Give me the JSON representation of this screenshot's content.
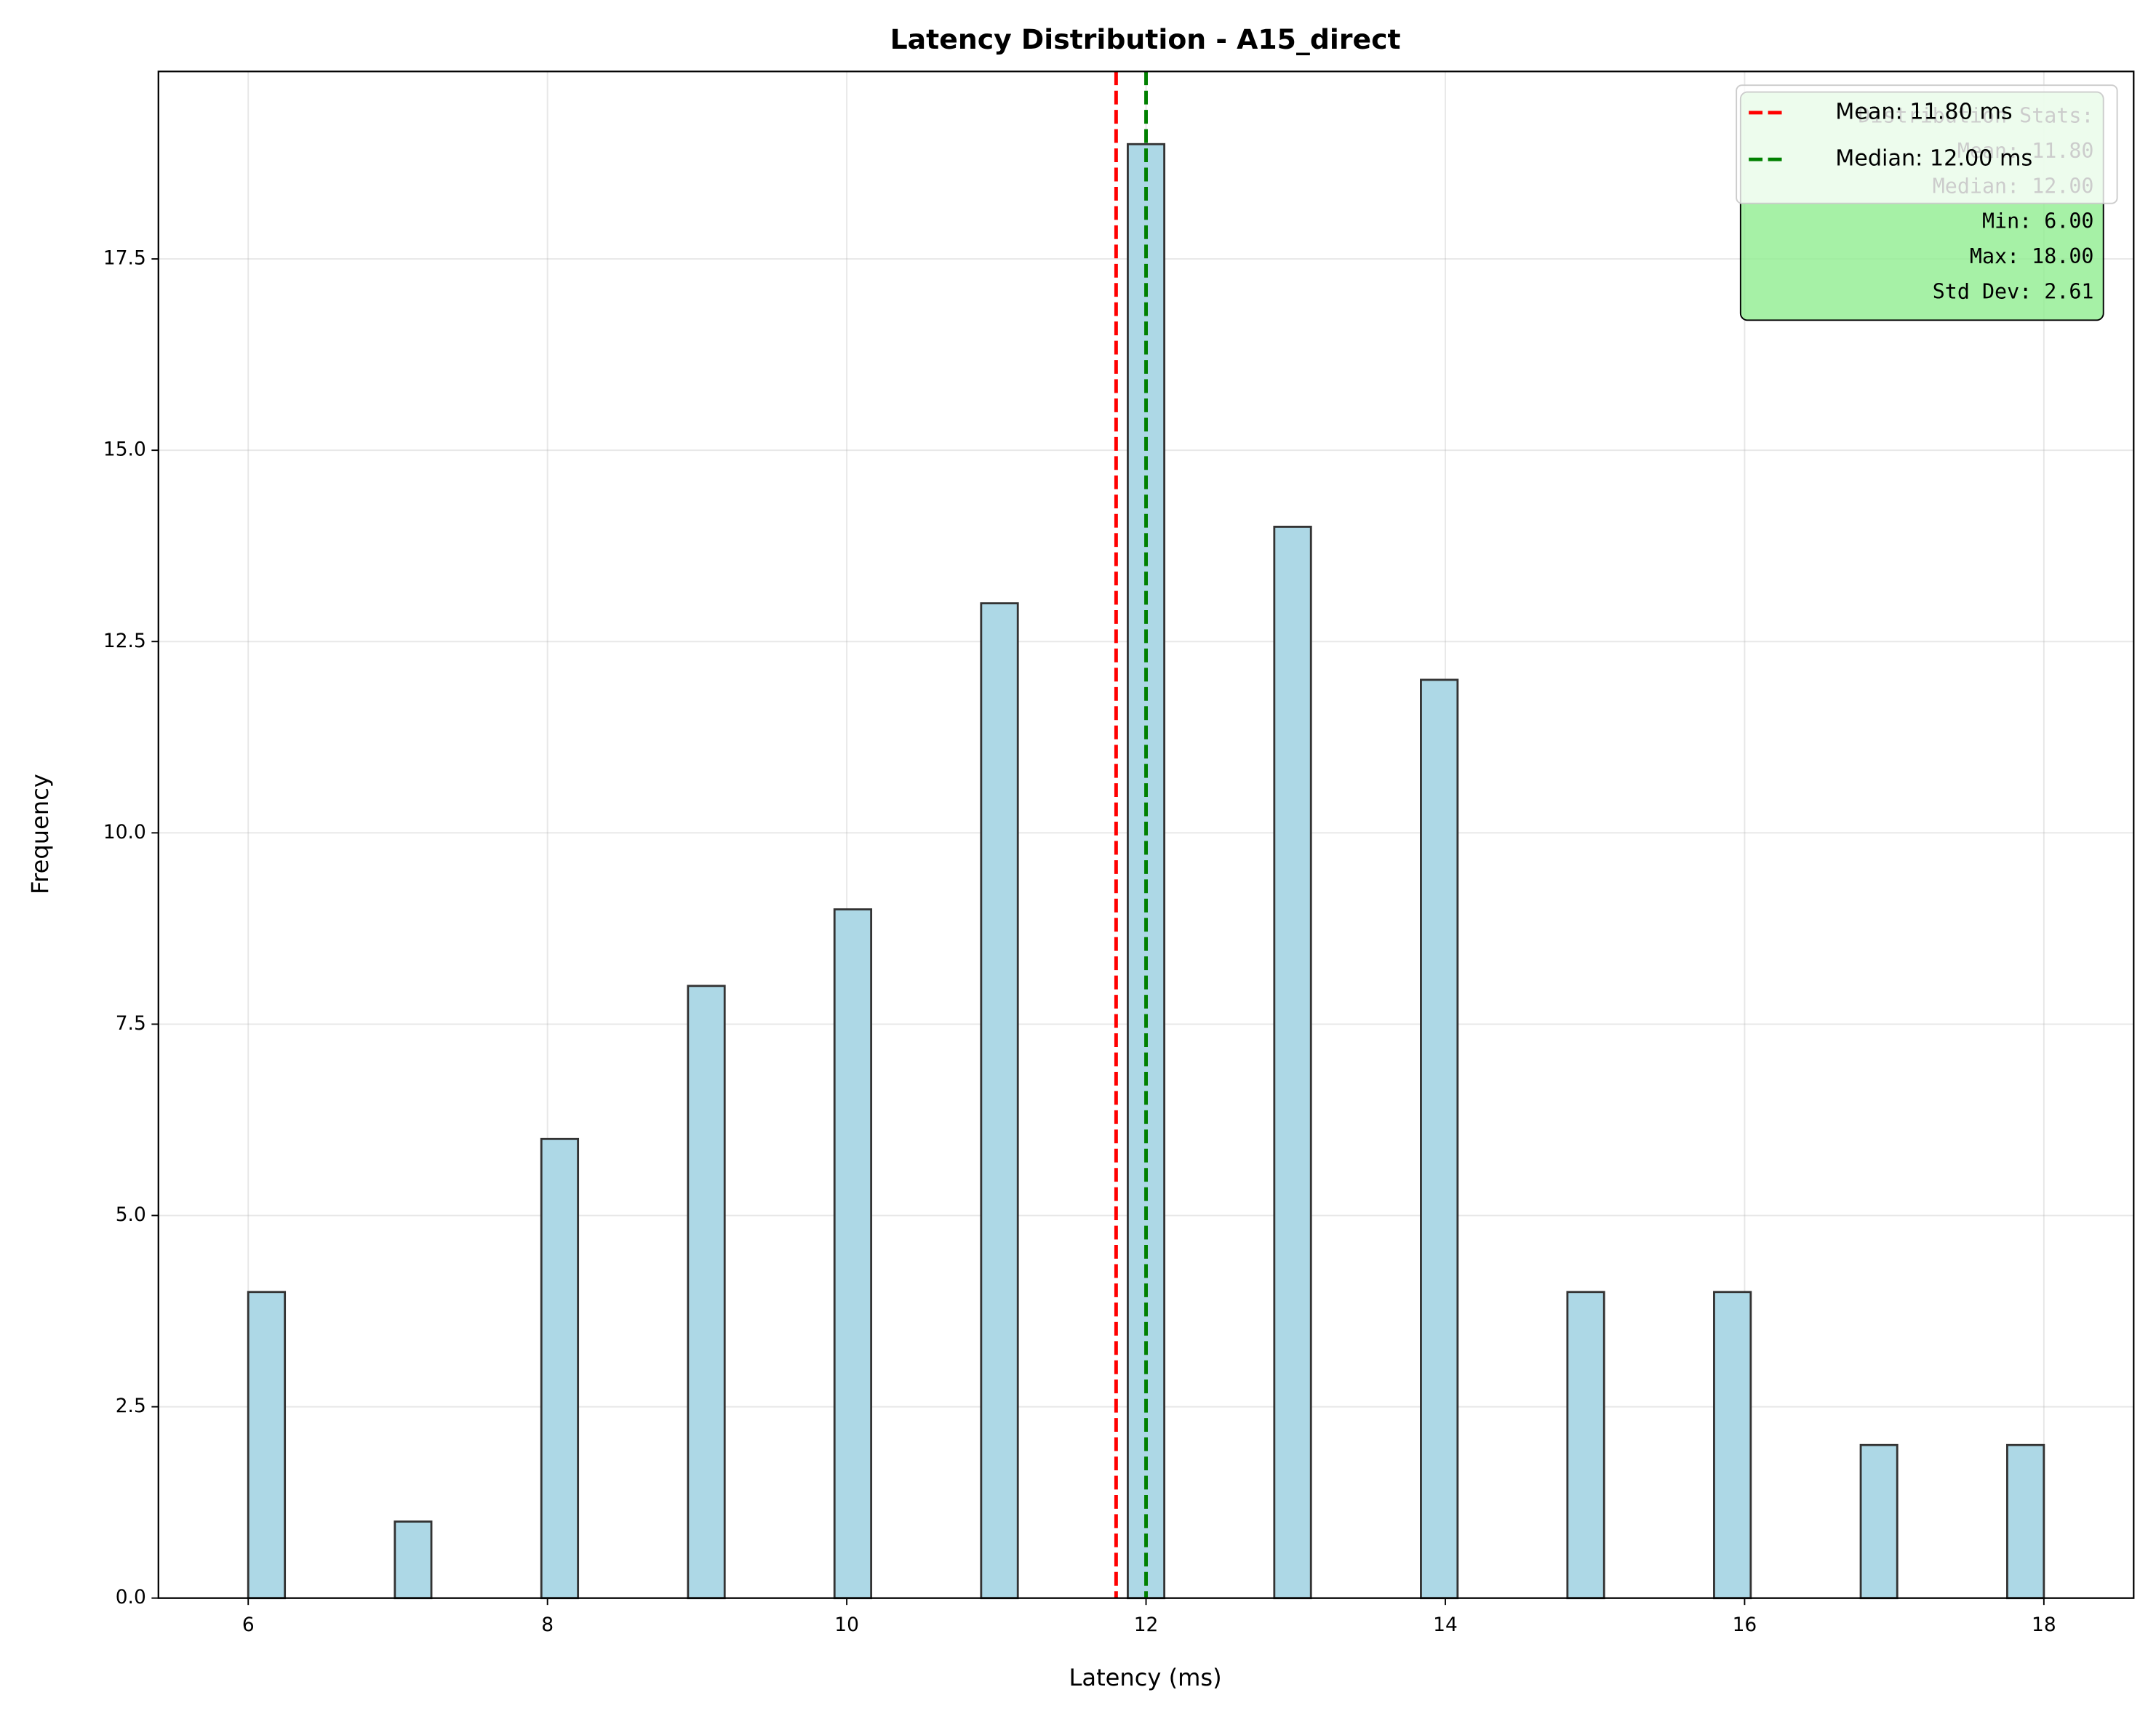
{
  "chart_data": {
    "type": "histogram",
    "title": "Latency Distribution - A15_direct",
    "xlabel": "Latency (ms)",
    "ylabel": "Frequency",
    "bins": [
      6,
      6.245,
      6.49,
      6.735,
      6.98,
      7.224,
      7.469,
      7.714,
      7.959,
      8.204,
      8.449,
      8.694,
      8.939,
      9.184,
      9.429,
      9.673,
      9.918,
      10.163,
      10.408,
      10.653,
      10.898,
      11.143,
      11.388,
      11.633,
      11.878,
      12.122,
      12.367,
      12.612,
      12.857,
      13.102,
      13.347,
      13.592,
      13.837,
      14.082,
      14.327,
      14.571,
      14.816,
      15.061,
      15.306,
      15.551,
      15.796,
      16.041,
      16.286,
      16.531,
      16.776,
      17.02,
      17.265,
      17.51,
      17.755,
      18.0
    ],
    "values": [
      4,
      0,
      0,
      0,
      1,
      0,
      0,
      0,
      6,
      0,
      0,
      0,
      8,
      0,
      0,
      0,
      9,
      0,
      0,
      0,
      13,
      0,
      0,
      0,
      19,
      0,
      0,
      0,
      14,
      0,
      0,
      0,
      12,
      0,
      0,
      0,
      4,
      0,
      0,
      0,
      4,
      0,
      0,
      0,
      2,
      0,
      0,
      0,
      2
    ],
    "color": "#add8e6",
    "edge_color": "#333333",
    "xlim": [
      5.4,
      18.6
    ],
    "ylim": [
      0,
      19.95
    ],
    "xticks": [
      6,
      8,
      10,
      12,
      14,
      16,
      18
    ],
    "yticks": [
      {
        "value": 0,
        "label": "0.0"
      },
      {
        "value": 2.5,
        "label": "2.5"
      },
      {
        "value": 5,
        "label": "5.0"
      },
      {
        "value": 7.5,
        "label": "7.5"
      },
      {
        "value": 10,
        "label": "10.0"
      },
      {
        "value": 12.5,
        "label": "12.5"
      },
      {
        "value": 15,
        "label": "15.0"
      },
      {
        "value": 17.5,
        "label": "17.5"
      }
    ],
    "grid": true,
    "vlines": [
      {
        "name": "Mean: 11.80 ms",
        "value": 11.8,
        "color": "#ff0000"
      },
      {
        "name": "Median: 12.00 ms",
        "value": 12.0,
        "color": "#008000"
      }
    ],
    "legend": "upper right",
    "stats_box": {
      "color": "#90ee90",
      "lines": [
        "Distribution Stats:",
        "Mean: 11.80",
        "Median: 12.00",
        "Min: 6.00",
        "Max: 18.00",
        "Std Dev: 2.61"
      ]
    }
  }
}
